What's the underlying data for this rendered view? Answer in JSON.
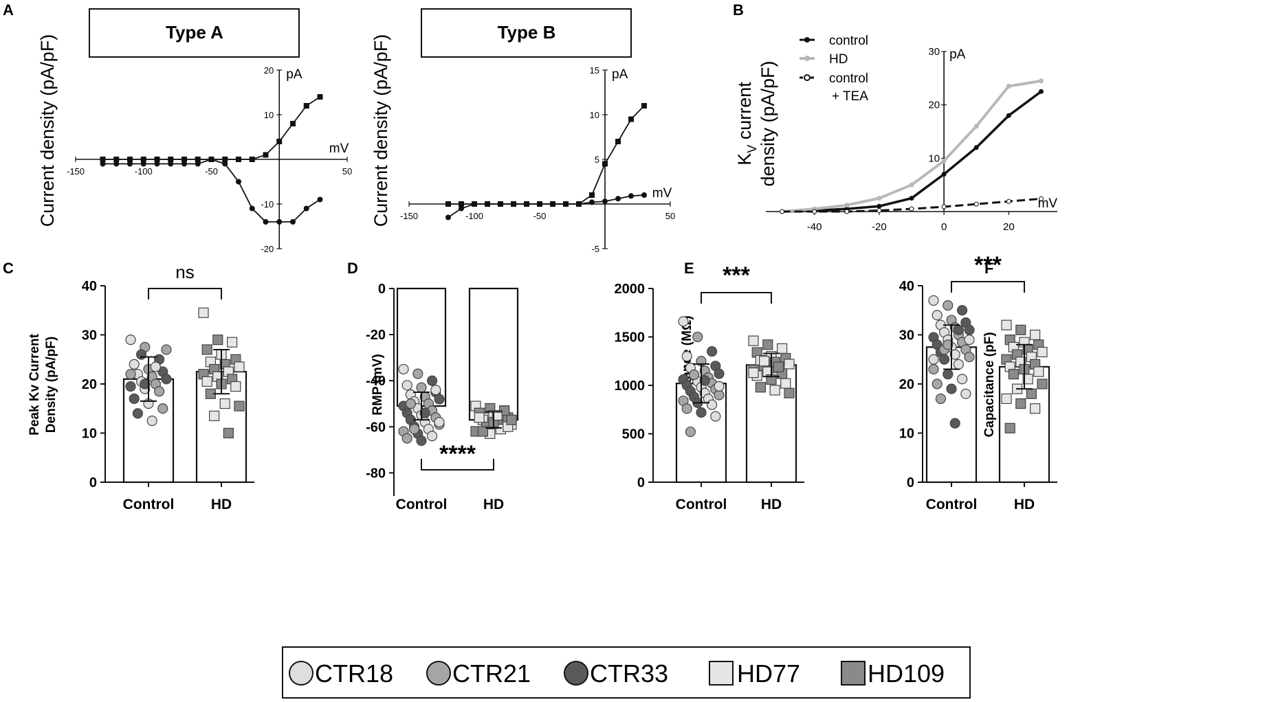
{
  "panels": {
    "A": {
      "letter": "A",
      "typeA": {
        "title": "Type A",
        "ylabel": "Current density (pA/pF)",
        "x_unit": "mV",
        "y_unit": "pA",
        "x_ticks": [
          -150,
          -100,
          -50,
          50
        ],
        "y_ticks": [
          20,
          10,
          -10,
          -20
        ]
      },
      "typeB": {
        "title": "Type B",
        "ylabel": "Current density (pA/pF)",
        "x_unit": "mV",
        "y_unit": "pA",
        "x_ticks": [
          -150,
          -100,
          -50,
          50
        ],
        "y_ticks": [
          15,
          10,
          5,
          -5
        ]
      }
    },
    "B": {
      "letter": "B",
      "ylabel_line1": "K",
      "ylabel_sub": "V",
      "ylabel_line1_rest": " current",
      "ylabel_line2": "density (pA/pF)",
      "x_unit": "mV",
      "y_unit": "pA",
      "x_ticks": [
        -40,
        -20,
        0,
        20
      ],
      "y_ticks": [
        30,
        20,
        10
      ],
      "legend": [
        "control",
        "HD",
        "control",
        "+ TEA"
      ]
    },
    "C": {
      "letter": "C",
      "ylabel_line1": "Peak Kv Current",
      "ylabel_line2": "Density (pA/pF)",
      "categories": [
        "Control",
        "HD"
      ],
      "y_ticks": [
        0,
        10,
        20,
        30,
        40
      ],
      "significance": "ns"
    },
    "D": {
      "letter": "D",
      "ylabel": "RMP (mV)",
      "categories": [
        "Control",
        "HD"
      ],
      "y_ticks": [
        0,
        -20,
        -40,
        -60,
        -80
      ],
      "significance": "****"
    },
    "E": {
      "letter": "E",
      "ylabel": "Input Resistance (MΩ)",
      "categories": [
        "Control",
        "HD"
      ],
      "y_ticks": [
        0,
        500,
        1000,
        1500,
        2000
      ],
      "significance": "***"
    },
    "F": {
      "letter": "F",
      "ylabel": "Capacitance (pF)",
      "categories": [
        "Control",
        "HD"
      ],
      "y_ticks": [
        0,
        10,
        20,
        30,
        40
      ],
      "significance": "***"
    }
  },
  "legend": [
    {
      "label": "CTR18",
      "shape": "circle",
      "color": "#dedede"
    },
    {
      "label": "CTR21",
      "shape": "circle",
      "color": "#a6a6a6"
    },
    {
      "label": "CTR33",
      "shape": "circle",
      "color": "#5a5a5a"
    },
    {
      "label": "HD77",
      "shape": "square",
      "color": "#e6e6e6"
    },
    {
      "label": "HD109",
      "shape": "square",
      "color": "#8a8a8a"
    }
  ],
  "colors": {
    "ink": "#111111",
    "hd_line": "#b8b8b8",
    "ctr18": "#dedede",
    "ctr21": "#a6a6a6",
    "ctr33": "#5a5a5a",
    "hd77": "#e6e6e6",
    "hd109": "#8a8a8a"
  },
  "chart_data": [
    {
      "id": "A-typeA",
      "type": "line",
      "title": "Type A",
      "xlabel": "mV",
      "ylabel": "Current density (pA/pF)",
      "xlim": [
        -150,
        50
      ],
      "ylim": [
        -20,
        20
      ],
      "series": [
        {
          "name": "outward (squares)",
          "marker": "square",
          "x": [
            -130,
            -120,
            -110,
            -100,
            -90,
            -80,
            -70,
            -60,
            -50,
            -40,
            -30,
            -20,
            -10,
            0,
            10,
            20,
            30
          ],
          "y": [
            0,
            0,
            0,
            0,
            0,
            0,
            0,
            0,
            0,
            0,
            0,
            0,
            1,
            4,
            8,
            12,
            14
          ]
        },
        {
          "name": "inward (circles)",
          "marker": "circle",
          "x": [
            -130,
            -120,
            -110,
            -100,
            -90,
            -80,
            -70,
            -60,
            -50,
            -40,
            -30,
            -20,
            -10,
            0,
            10,
            20,
            30
          ],
          "y": [
            -1,
            -1,
            -1,
            -1,
            -1,
            -1,
            -1,
            -1,
            0,
            -1,
            -5,
            -11,
            -14,
            -14,
            -14,
            -11,
            -9
          ]
        }
      ]
    },
    {
      "id": "A-typeB",
      "type": "line",
      "title": "Type B",
      "xlabel": "mV",
      "ylabel": "Current density (pA/pF)",
      "xlim": [
        -150,
        50
      ],
      "ylim": [
        -5,
        15
      ],
      "series": [
        {
          "name": "outward (squares)",
          "marker": "square",
          "x": [
            -120,
            -110,
            -100,
            -90,
            -80,
            -70,
            -60,
            -50,
            -40,
            -30,
            -20,
            -10,
            0,
            10,
            20,
            30
          ],
          "y": [
            0,
            0,
            0,
            0,
            0,
            0,
            0,
            0,
            0,
            0,
            0,
            1,
            4.5,
            7,
            9.5,
            11
          ]
        },
        {
          "name": "circles",
          "marker": "circle",
          "x": [
            -120,
            -110,
            -100,
            -90,
            -80,
            -70,
            -60,
            -50,
            -40,
            -30,
            -20,
            -10,
            0,
            10,
            20,
            30
          ],
          "y": [
            -1.5,
            -0.5,
            0,
            0,
            0,
            0,
            0,
            0,
            0,
            0,
            0,
            0.2,
            0.3,
            0.6,
            0.9,
            1
          ]
        }
      ]
    },
    {
      "id": "B",
      "type": "line",
      "xlabel": "mV",
      "ylabel": "KV current density (pA/pF)",
      "xlim": [
        -55,
        35
      ],
      "ylim": [
        0,
        30
      ],
      "series": [
        {
          "name": "control",
          "x": [
            -50,
            -40,
            -30,
            -20,
            -10,
            0,
            10,
            20,
            30
          ],
          "y": [
            0,
            0.2,
            0.5,
            1,
            2.5,
            7,
            12,
            18,
            22.5
          ]
        },
        {
          "name": "HD",
          "x": [
            -50,
            -40,
            -30,
            -20,
            -10,
            0,
            10,
            20,
            30
          ],
          "y": [
            0,
            0.5,
            1.2,
            2.5,
            5,
            9.5,
            16,
            23.5,
            24.5
          ]
        },
        {
          "name": "control + TEA",
          "x": [
            -50,
            -40,
            -30,
            -20,
            -10,
            0,
            10,
            20,
            30
          ],
          "y": [
            0,
            0,
            0,
            0.2,
            0.5,
            0.9,
            1.4,
            1.9,
            2.4
          ]
        }
      ]
    },
    {
      "id": "C",
      "type": "bar",
      "categories": [
        "Control",
        "HD"
      ],
      "values": [
        21,
        22.5
      ],
      "errors": [
        4.5,
        4.5
      ],
      "ylabel": "Peak Kv Current Density (pA/pF)",
      "ylim": [
        0,
        40
      ],
      "points": {
        "Control": [
          29,
          27.5,
          25,
          24,
          23,
          22.5,
          22,
          21.5,
          21,
          20.5,
          20,
          19.5,
          19,
          18.5,
          17,
          16,
          15,
          14,
          12.5,
          27,
          26,
          23.5,
          22,
          20
        ],
        "HD": [
          34.5,
          29,
          28.5,
          27,
          26,
          25,
          24.5,
          24,
          23.5,
          23,
          22.5,
          22,
          21.5,
          21,
          20.5,
          20,
          19.5,
          18,
          16,
          15.5,
          13.5,
          10
        ]
      }
    },
    {
      "id": "D",
      "type": "bar",
      "categories": [
        "Control",
        "HD"
      ],
      "values": [
        -51,
        -57
      ],
      "errors": [
        6,
        3.5
      ],
      "ylabel": "RMP (mV)",
      "ylim": [
        -90,
        0
      ],
      "points": {
        "Control": [
          -35,
          -37,
          -40,
          -42,
          -43,
          -45,
          -46,
          -47,
          -48,
          -49,
          -50,
          -51,
          -52,
          -53,
          -54,
          -55,
          -56,
          -57,
          -58,
          -59,
          -60,
          -61,
          -62,
          -63,
          -64,
          -65,
          -66,
          -44,
          -50,
          -54,
          -58,
          -61
        ],
        "HD": [
          -51,
          -52,
          -53,
          -54,
          -55,
          -56,
          -57,
          -58,
          -59,
          -60,
          -61,
          -62,
          -63,
          -53,
          -56,
          -58,
          -60,
          -62,
          -55,
          -57
        ]
      }
    },
    {
      "id": "E",
      "type": "bar",
      "categories": [
        "Control",
        "HD"
      ],
      "values": [
        1020,
        1210
      ],
      "errors": [
        200,
        120
      ],
      "ylabel": "Input Resistance (MΩ)",
      "ylim": [
        0,
        2000
      ],
      "points": {
        "Control": [
          1660,
          1500,
          1350,
          1300,
          1250,
          1200,
          1180,
          1150,
          1120,
          1100,
          1080,
          1060,
          1040,
          1020,
          1000,
          980,
          960,
          940,
          920,
          900,
          880,
          860,
          840,
          820,
          800,
          760,
          720,
          680,
          520,
          1050,
          990,
          1110
        ],
        "HD": [
          1460,
          1420,
          1380,
          1340,
          1300,
          1280,
          1260,
          1240,
          1220,
          1200,
          1180,
          1160,
          1140,
          1120,
          1100,
          1060,
          1020,
          980,
          950,
          920,
          1250,
          1190,
          1130
        ]
      }
    },
    {
      "id": "F",
      "type": "bar",
      "categories": [
        "Control",
        "HD"
      ],
      "values": [
        27.5,
        23.5
      ],
      "errors": [
        4.5,
        4.5
      ],
      "ylabel": "Capacitance (pF)",
      "ylim": [
        0,
        40
      ],
      "points": {
        "Control": [
          37,
          36,
          35,
          34,
          33,
          32.5,
          32,
          31.5,
          31,
          30.5,
          30,
          29.5,
          29,
          28.5,
          28,
          27.5,
          27,
          26.5,
          26,
          25.5,
          25,
          24,
          23,
          22,
          21,
          20,
          19,
          18,
          17,
          12,
          29,
          27,
          31,
          25,
          28
        ],
        "HD": [
          32,
          31,
          30,
          29,
          28.5,
          28,
          27.5,
          27,
          26.5,
          26,
          25.5,
          25,
          24.5,
          24,
          23.5,
          23,
          22.5,
          22,
          21,
          20,
          19,
          18,
          17,
          16,
          15,
          11
        ]
      }
    }
  ]
}
